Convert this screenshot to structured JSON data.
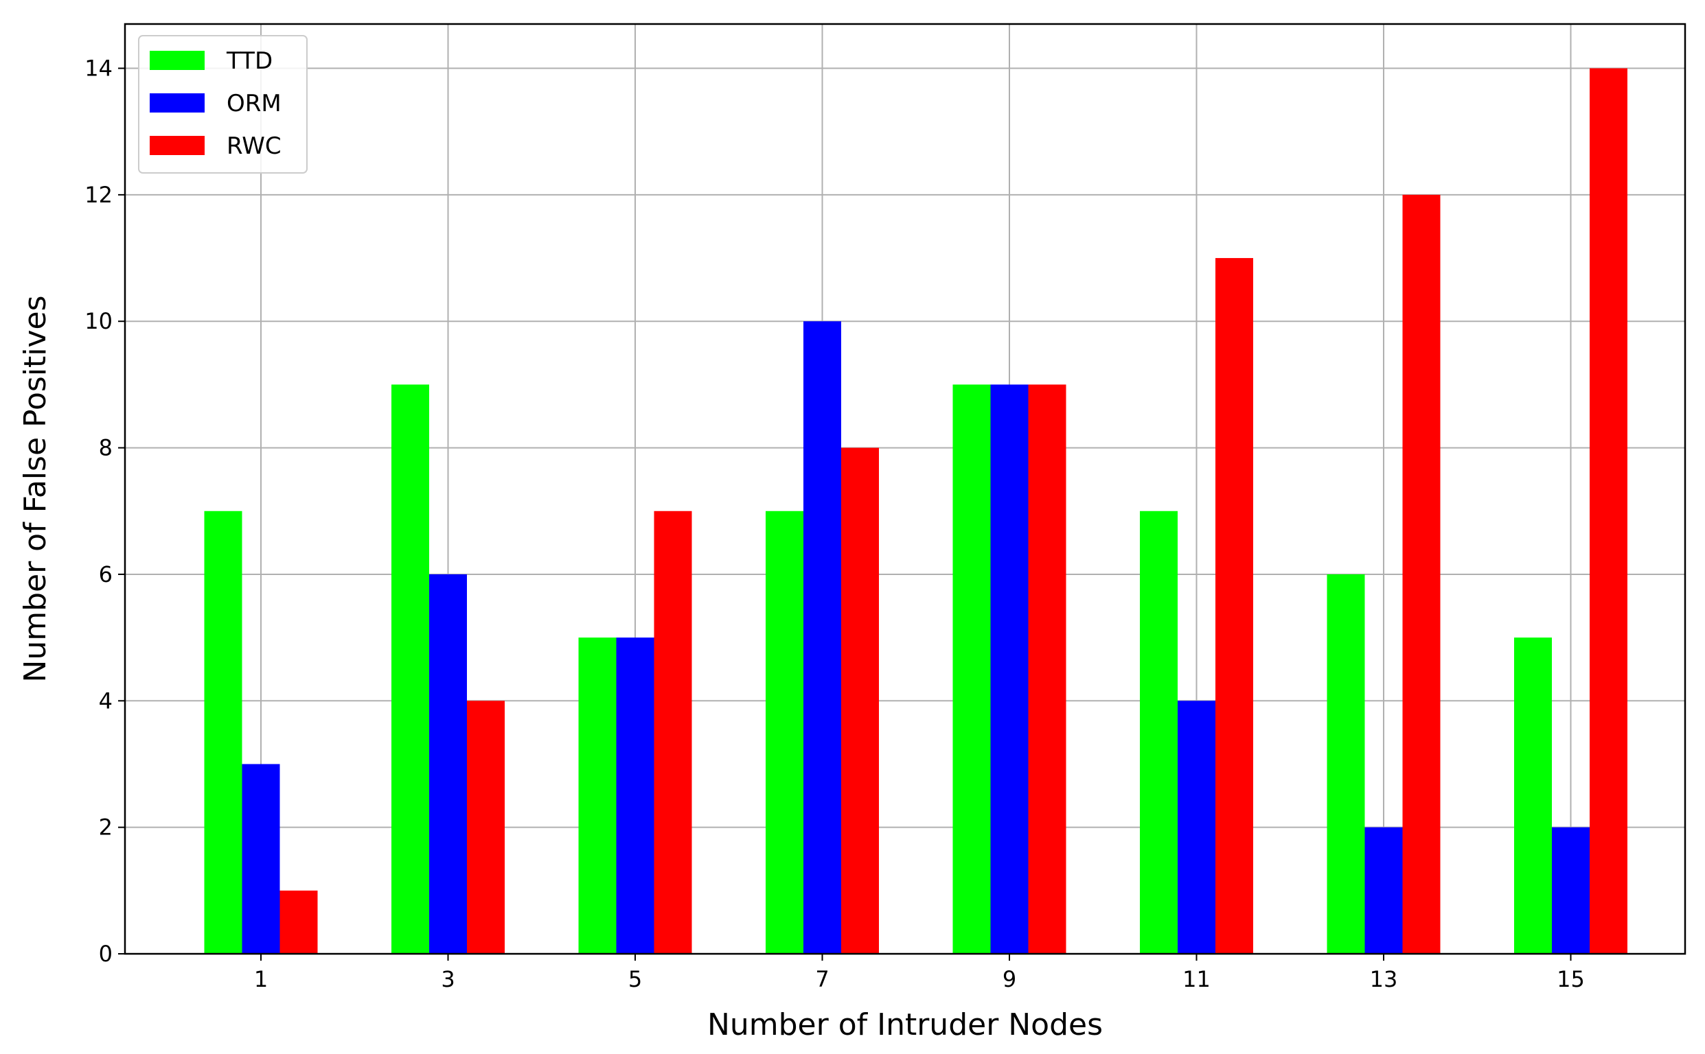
{
  "chart_data": {
    "type": "bar",
    "title": "",
    "xlabel": "Number of Intruder Nodes",
    "ylabel": "Number of False Positives",
    "categories": [
      "1",
      "3",
      "5",
      "7",
      "9",
      "11",
      "13",
      "15"
    ],
    "yticks": [
      "0",
      "2",
      "4",
      "6",
      "8",
      "10",
      "12",
      "14"
    ],
    "ylim": [
      0,
      14.7
    ],
    "grid": true,
    "legend_position": "top-left",
    "series": [
      {
        "name": "TTD",
        "color": "#00ff00",
        "values": [
          7,
          9,
          5,
          7,
          9,
          7,
          6,
          5
        ]
      },
      {
        "name": "ORM",
        "color": "#0000ff",
        "values": [
          3,
          6,
          5,
          10,
          9,
          4,
          2,
          2
        ]
      },
      {
        "name": "RWC",
        "color": "#ff0000",
        "values": [
          1,
          4,
          7,
          8,
          9,
          11,
          12,
          14
        ]
      }
    ]
  }
}
